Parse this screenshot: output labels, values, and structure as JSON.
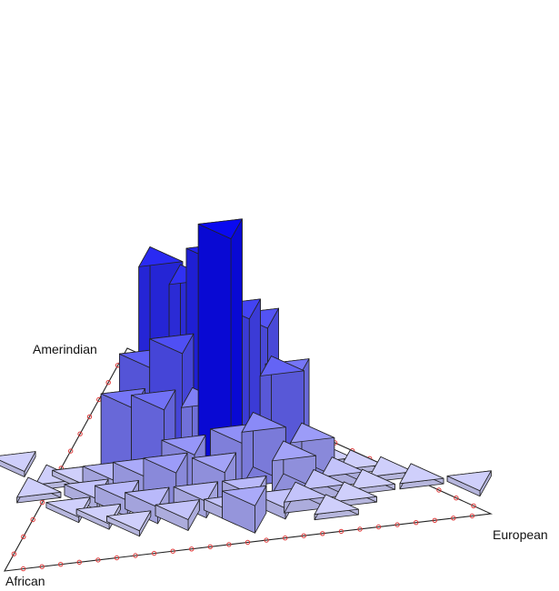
{
  "chart_data": {
    "type": "ternary-3d-histogram",
    "vertex_labels": {
      "amerindian": "Amerindian",
      "african": "African",
      "european": "European"
    },
    "bins_per_edge": 10,
    "bars": [
      {
        "p": 0.25,
        "q": 1,
        "h": 5
      },
      {
        "p": 0.5,
        "q": 4,
        "h": 43
      },
      {
        "p": 0.5,
        "q": 5,
        "h": 35
      },
      {
        "p": 0,
        "q": 5,
        "h": 31
      },
      {
        "p": -0.5,
        "q": 5.5,
        "h": 33
      },
      {
        "p": 1,
        "q": 4.5,
        "h": 26
      },
      {
        "p": -0.5,
        "q": 4,
        "h": 23
      },
      {
        "p": -1,
        "q": 4.5,
        "h": 19
      },
      {
        "p": 1.5,
        "q": 5,
        "h": 22
      },
      {
        "p": 1.5,
        "q": 3.5,
        "h": 18
      },
      {
        "p": -1,
        "q": 3.5,
        "h": 15
      },
      {
        "p": 0,
        "q": 4,
        "h": 12
      },
      {
        "p": -1.5,
        "q": 4,
        "h": 14
      },
      {
        "p": 2,
        "q": 4.5,
        "h": 14
      },
      {
        "p": 0.5,
        "q": 3,
        "h": 9
      },
      {
        "p": -0.5,
        "q": 3,
        "h": 8
      },
      {
        "p": 1,
        "q": 3,
        "h": 10
      },
      {
        "p": -1,
        "q": 2.5,
        "h": 7
      },
      {
        "p": 1.5,
        "q": 2.5,
        "h": 6
      },
      {
        "p": 2,
        "q": 3,
        "h": 7
      },
      {
        "p": 0,
        "q": 2.5,
        "h": 6
      },
      {
        "p": -1.5,
        "q": 3,
        "h": 5
      },
      {
        "p": -2,
        "q": 3.5,
        "h": 3
      },
      {
        "p": -2,
        "q": 2.5,
        "h": 3
      },
      {
        "p": -2.5,
        "q": 3,
        "h": 2
      },
      {
        "p": -2.5,
        "q": 4,
        "h": 1
      },
      {
        "p": -1.5,
        "q": 2,
        "h": 3
      },
      {
        "p": -1,
        "q": 1.5,
        "h": 2
      },
      {
        "p": -0.5,
        "q": 2,
        "h": 3
      },
      {
        "p": 0.5,
        "q": 2,
        "h": 3
      },
      {
        "p": 1,
        "q": 1.5,
        "h": 2
      },
      {
        "p": 1.5,
        "q": 1.5,
        "h": 2
      },
      {
        "p": 2,
        "q": 2,
        "h": 2
      },
      {
        "p": 2.5,
        "q": 2.5,
        "h": 2
      },
      {
        "p": 2.5,
        "q": 3.5,
        "h": 1
      },
      {
        "p": 3,
        "q": 3,
        "h": 1
      },
      {
        "p": -2.5,
        "q": 2,
        "h": 1
      },
      {
        "p": -2,
        "q": 1.5,
        "h": 1
      },
      {
        "p": -3,
        "q": 2.5,
        "h": 1
      },
      {
        "p": 0,
        "q": 1.5,
        "h": 2
      },
      {
        "p": 2.5,
        "q": 1.5,
        "h": 1
      },
      {
        "p": 3,
        "q": 2,
        "h": 1
      },
      {
        "p": 2,
        "q": 1,
        "h": 1
      },
      {
        "p": 3.5,
        "q": 2.5,
        "h": 1
      },
      {
        "p": 4,
        "q": 2,
        "h": 1
      },
      {
        "p": -3,
        "q": 4,
        "h": 1
      },
      {
        "p": -3.5,
        "q": 3.5,
        "h": 1
      },
      {
        "p": 5,
        "q": 1.5,
        "h": 1
      },
      {
        "p": -3.5,
        "q": 5,
        "h": 1
      }
    ],
    "colors": {
      "bar_max": "#0a0af0",
      "bar_min": "#e6e6fc",
      "edge": "#222222",
      "tick": "#e03a3a"
    }
  }
}
